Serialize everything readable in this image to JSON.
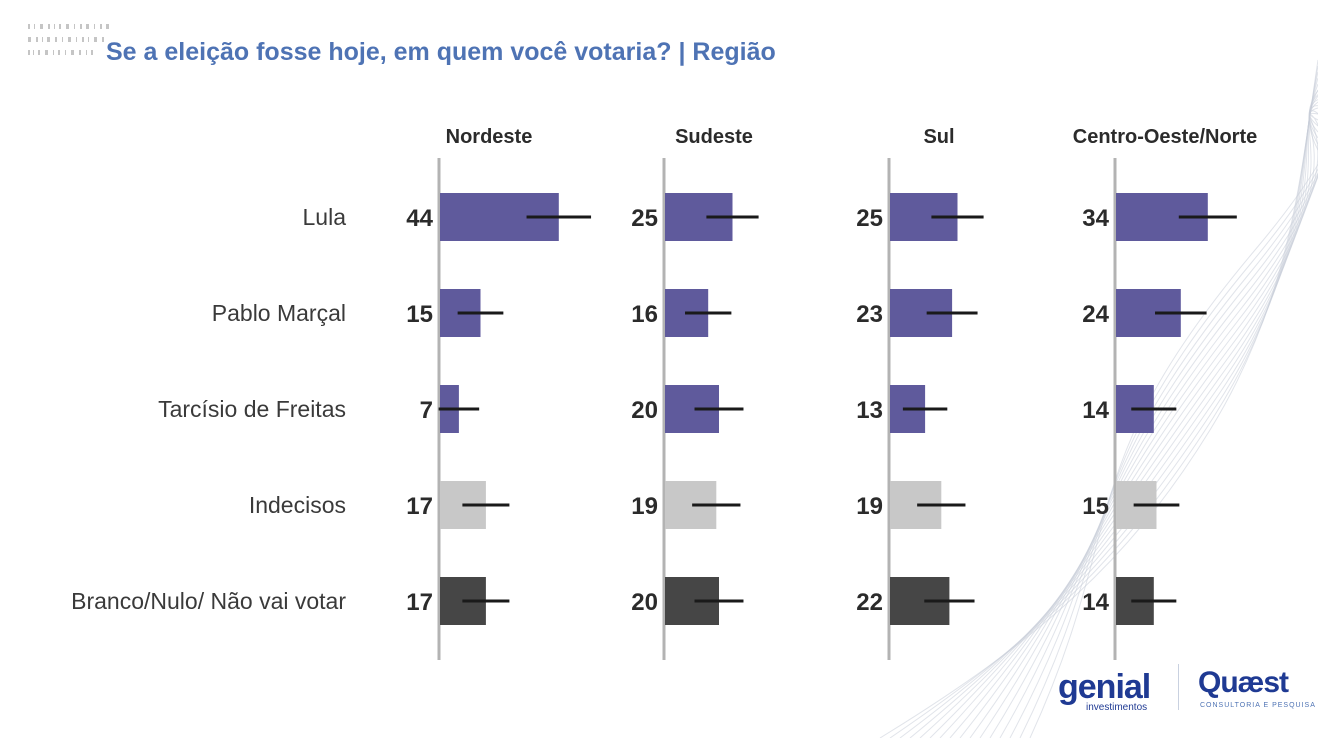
{
  "title": "Se a eleição fosse hoje, em quem você votaria? | Região",
  "logos": {
    "genial": "genial",
    "genial_sub": "investimentos",
    "quaest": "Quæst",
    "quaest_sub": "CONSULTORIA E PESQUISA"
  },
  "colors": {
    "title": "#4e73b4",
    "candidate": "#5f5a9c",
    "undecided": "#c8c8c8",
    "blank_null": "#464646",
    "axis": "#b3b3b3",
    "label_text": "#3a3a3a",
    "value_text": "#2b2b2b"
  },
  "chart_data": {
    "type": "bar",
    "orientation": "horizontal",
    "categories": [
      "Lula",
      "Pablo Marçal",
      "Tarcísio de Freitas",
      "Indecisos",
      "Branco/Nulo/ Não vai votar"
    ],
    "category_groups": [
      "candidate",
      "candidate",
      "candidate",
      "undecided",
      "blank_null"
    ],
    "series": [
      {
        "name": "Nordeste",
        "values": [
          44,
          15,
          7,
          17,
          17
        ]
      },
      {
        "name": "Sudeste",
        "values": [
          25,
          16,
          20,
          19,
          20
        ]
      },
      {
        "name": "Sul",
        "values": [
          25,
          23,
          13,
          19,
          22
        ]
      },
      {
        "name": "Centro-Oeste/Norte",
        "values": [
          34,
          24,
          14,
          15,
          14
        ]
      }
    ],
    "error_bars": true,
    "xlim": [
      0,
      80
    ],
    "grid": false,
    "legend": "none"
  }
}
